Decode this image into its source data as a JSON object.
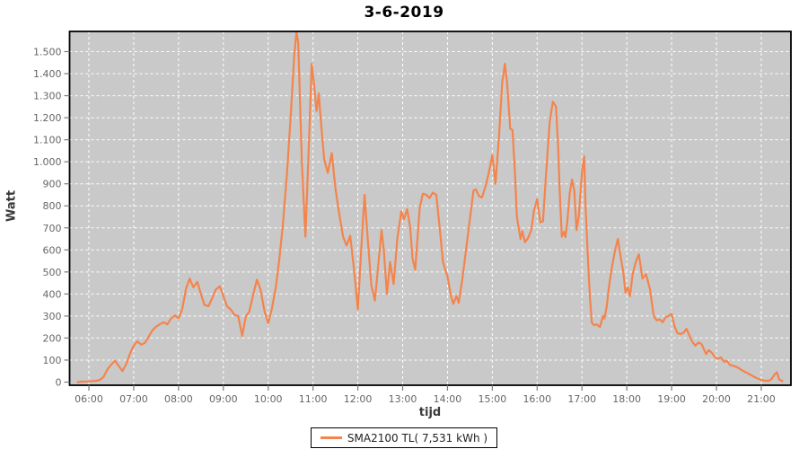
{
  "title": "3-6-2019",
  "legend": {
    "label": "SMA2100 TL( 7,531 kWh )"
  },
  "colors": {
    "series": "#f4844c",
    "plot_background": "#c9c9c9",
    "gridline": "#ffffff",
    "plot_border": "#000000",
    "tick_mark": "#7a7a7a",
    "tick_label": "#666666",
    "axis_title": "#3a3a3a",
    "title_color": "#000000",
    "page_background": "#ffffff"
  },
  "chart_data": {
    "type": "line",
    "title": "3-6-2019",
    "xlabel": "tijd",
    "ylabel": "Watt",
    "grid": "white dashed gridlines on gray plot background",
    "legend_position": "bottom-center",
    "ylim": [
      0,
      1592
    ],
    "xlim_hours": [
      5.55,
      21.65
    ],
    "y_ticks": [
      {
        "value": 0,
        "label": "0"
      },
      {
        "value": 100,
        "label": "100"
      },
      {
        "value": 200,
        "label": "200"
      },
      {
        "value": 300,
        "label": "300"
      },
      {
        "value": 400,
        "label": "400"
      },
      {
        "value": 500,
        "label": "500"
      },
      {
        "value": 600,
        "label": "600"
      },
      {
        "value": 700,
        "label": "700"
      },
      {
        "value": 800,
        "label": "800"
      },
      {
        "value": 900,
        "label": "900"
      },
      {
        "value": 1000,
        "label": "1.000"
      },
      {
        "value": 1100,
        "label": "1.100"
      },
      {
        "value": 1200,
        "label": "1.200"
      },
      {
        "value": 1300,
        "label": "1.300"
      },
      {
        "value": 1400,
        "label": "1.400"
      },
      {
        "value": 1500,
        "label": "1.500"
      }
    ],
    "x_ticks": [
      {
        "hour": 6,
        "label": "06:00"
      },
      {
        "hour": 7,
        "label": "07:00"
      },
      {
        "hour": 8,
        "label": "08:00"
      },
      {
        "hour": 9,
        "label": "09:00"
      },
      {
        "hour": 10,
        "label": "10:00"
      },
      {
        "hour": 11,
        "label": "11:00"
      },
      {
        "hour": 12,
        "label": "12:00"
      },
      {
        "hour": 13,
        "label": "13:00"
      },
      {
        "hour": 14,
        "label": "14:00"
      },
      {
        "hour": 15,
        "label": "15:00"
      },
      {
        "hour": 16,
        "label": "16:00"
      },
      {
        "hour": 17,
        "label": "17:00"
      },
      {
        "hour": 18,
        "label": "18:00"
      },
      {
        "hour": 19,
        "label": "19:00"
      },
      {
        "hour": 20,
        "label": "20:00"
      },
      {
        "hour": 21,
        "label": "21:00"
      }
    ],
    "series": [
      {
        "name": "SMA2100 TL( 7,531 kWh )",
        "color": "#f4844c",
        "points": [
          [
            5.75,
            0
          ],
          [
            5.83,
            2
          ],
          [
            5.92,
            3
          ],
          [
            6.0,
            3
          ],
          [
            6.08,
            5
          ],
          [
            6.17,
            6
          ],
          [
            6.25,
            10
          ],
          [
            6.33,
            25
          ],
          [
            6.42,
            60
          ],
          [
            6.5,
            80
          ],
          [
            6.58,
            97
          ],
          [
            6.67,
            72
          ],
          [
            6.75,
            50
          ],
          [
            6.83,
            80
          ],
          [
            6.92,
            130
          ],
          [
            7.0,
            165
          ],
          [
            7.08,
            185
          ],
          [
            7.17,
            170
          ],
          [
            7.25,
            178
          ],
          [
            7.33,
            205
          ],
          [
            7.42,
            235
          ],
          [
            7.5,
            252
          ],
          [
            7.58,
            262
          ],
          [
            7.67,
            272
          ],
          [
            7.75,
            262
          ],
          [
            7.83,
            288
          ],
          [
            7.92,
            303
          ],
          [
            8.0,
            290
          ],
          [
            8.08,
            330
          ],
          [
            8.17,
            425
          ],
          [
            8.25,
            470
          ],
          [
            8.33,
            430
          ],
          [
            8.42,
            455
          ],
          [
            8.5,
            400
          ],
          [
            8.58,
            350
          ],
          [
            8.67,
            345
          ],
          [
            8.75,
            380
          ],
          [
            8.83,
            420
          ],
          [
            8.92,
            435
          ],
          [
            9.0,
            390
          ],
          [
            9.08,
            345
          ],
          [
            9.17,
            328
          ],
          [
            9.25,
            305
          ],
          [
            9.33,
            300
          ],
          [
            9.42,
            210
          ],
          [
            9.5,
            298
          ],
          [
            9.58,
            320
          ],
          [
            9.67,
            400
          ],
          [
            9.75,
            465
          ],
          [
            9.83,
            420
          ],
          [
            9.92,
            320
          ],
          [
            10.0,
            268
          ],
          [
            10.08,
            330
          ],
          [
            10.17,
            430
          ],
          [
            10.25,
            560
          ],
          [
            10.33,
            720
          ],
          [
            10.42,
            950
          ],
          [
            10.5,
            1200
          ],
          [
            10.58,
            1480
          ],
          [
            10.63,
            1590
          ],
          [
            10.67,
            1540
          ],
          [
            10.75,
            1000
          ],
          [
            10.83,
            660
          ],
          [
            10.92,
            1150
          ],
          [
            10.97,
            1445
          ],
          [
            11.03,
            1340
          ],
          [
            11.08,
            1230
          ],
          [
            11.13,
            1310
          ],
          [
            11.17,
            1200
          ],
          [
            11.25,
            1010
          ],
          [
            11.33,
            950
          ],
          [
            11.42,
            1040
          ],
          [
            11.5,
            880
          ],
          [
            11.58,
            770
          ],
          [
            11.67,
            660
          ],
          [
            11.75,
            620
          ],
          [
            11.83,
            665
          ],
          [
            11.92,
            500
          ],
          [
            12.0,
            330
          ],
          [
            12.08,
            620
          ],
          [
            12.15,
            850
          ],
          [
            12.22,
            650
          ],
          [
            12.3,
            440
          ],
          [
            12.38,
            370
          ],
          [
            12.47,
            560
          ],
          [
            12.53,
            690
          ],
          [
            12.58,
            600
          ],
          [
            12.65,
            400
          ],
          [
            12.72,
            545
          ],
          [
            12.8,
            445
          ],
          [
            12.88,
            650
          ],
          [
            12.97,
            775
          ],
          [
            13.03,
            740
          ],
          [
            13.1,
            785
          ],
          [
            13.17,
            700
          ],
          [
            13.22,
            560
          ],
          [
            13.28,
            510
          ],
          [
            13.38,
            790
          ],
          [
            13.45,
            855
          ],
          [
            13.53,
            850
          ],
          [
            13.6,
            835
          ],
          [
            13.67,
            860
          ],
          [
            13.75,
            850
          ],
          [
            13.83,
            690
          ],
          [
            13.9,
            545
          ],
          [
            14.0,
            480
          ],
          [
            14.08,
            390
          ],
          [
            14.13,
            355
          ],
          [
            14.2,
            390
          ],
          [
            14.25,
            360
          ],
          [
            14.33,
            465
          ],
          [
            14.42,
            610
          ],
          [
            14.5,
            740
          ],
          [
            14.58,
            870
          ],
          [
            14.63,
            875
          ],
          [
            14.7,
            845
          ],
          [
            14.77,
            838
          ],
          [
            14.85,
            890
          ],
          [
            14.92,
            950
          ],
          [
            15.0,
            1030
          ],
          [
            15.07,
            900
          ],
          [
            15.15,
            1120
          ],
          [
            15.22,
            1360
          ],
          [
            15.28,
            1445
          ],
          [
            15.33,
            1360
          ],
          [
            15.4,
            1150
          ],
          [
            15.45,
            1145
          ],
          [
            15.5,
            975
          ],
          [
            15.55,
            750
          ],
          [
            15.6,
            685
          ],
          [
            15.63,
            650
          ],
          [
            15.67,
            685
          ],
          [
            15.73,
            635
          ],
          [
            15.8,
            655
          ],
          [
            15.87,
            690
          ],
          [
            15.93,
            780
          ],
          [
            16.0,
            830
          ],
          [
            16.07,
            725
          ],
          [
            16.13,
            730
          ],
          [
            16.2,
            950
          ],
          [
            16.28,
            1180
          ],
          [
            16.35,
            1273
          ],
          [
            16.42,
            1250
          ],
          [
            16.47,
            1060
          ],
          [
            16.5,
            880
          ],
          [
            16.55,
            660
          ],
          [
            16.6,
            682
          ],
          [
            16.63,
            658
          ],
          [
            16.67,
            725
          ],
          [
            16.73,
            860
          ],
          [
            16.78,
            920
          ],
          [
            16.83,
            870
          ],
          [
            16.88,
            690
          ],
          [
            16.93,
            755
          ],
          [
            17.0,
            950
          ],
          [
            17.05,
            1025
          ],
          [
            17.08,
            800
          ],
          [
            17.12,
            620
          ],
          [
            17.15,
            490
          ],
          [
            17.18,
            380
          ],
          [
            17.22,
            270
          ],
          [
            17.27,
            258
          ],
          [
            17.33,
            262
          ],
          [
            17.4,
            250
          ],
          [
            17.47,
            300
          ],
          [
            17.5,
            288
          ],
          [
            17.55,
            340
          ],
          [
            17.6,
            430
          ],
          [
            17.67,
            525
          ],
          [
            17.73,
            590
          ],
          [
            17.8,
            650
          ],
          [
            17.87,
            560
          ],
          [
            17.92,
            500
          ],
          [
            17.97,
            405
          ],
          [
            18.02,
            430
          ],
          [
            18.07,
            390
          ],
          [
            18.13,
            490
          ],
          [
            18.2,
            545
          ],
          [
            18.27,
            580
          ],
          [
            18.35,
            470
          ],
          [
            18.43,
            490
          ],
          [
            18.52,
            420
          ],
          [
            18.6,
            300
          ],
          [
            18.67,
            280
          ],
          [
            18.73,
            285
          ],
          [
            18.8,
            272
          ],
          [
            18.87,
            295
          ],
          [
            18.93,
            300
          ],
          [
            19.0,
            310
          ],
          [
            19.07,
            250
          ],
          [
            19.13,
            222
          ],
          [
            19.2,
            218
          ],
          [
            19.27,
            225
          ],
          [
            19.33,
            242
          ],
          [
            19.42,
            200
          ],
          [
            19.47,
            180
          ],
          [
            19.53,
            165
          ],
          [
            19.6,
            180
          ],
          [
            19.67,
            172
          ],
          [
            19.73,
            145
          ],
          [
            19.77,
            127
          ],
          [
            19.83,
            145
          ],
          [
            19.9,
            133
          ],
          [
            19.97,
            113
          ],
          [
            20.03,
            105
          ],
          [
            20.1,
            112
          ],
          [
            20.17,
            92
          ],
          [
            20.23,
            97
          ],
          [
            20.3,
            78
          ],
          [
            20.37,
            74
          ],
          [
            20.43,
            70
          ],
          [
            20.5,
            63
          ],
          [
            20.57,
            54
          ],
          [
            20.63,
            47
          ],
          [
            20.7,
            40
          ],
          [
            20.77,
            32
          ],
          [
            20.83,
            25
          ],
          [
            20.9,
            18
          ],
          [
            20.97,
            12
          ],
          [
            21.03,
            8
          ],
          [
            21.1,
            6
          ],
          [
            21.17,
            6
          ],
          [
            21.23,
            14
          ],
          [
            21.3,
            35
          ],
          [
            21.35,
            45
          ],
          [
            21.4,
            12
          ],
          [
            21.47,
            5
          ]
        ]
      }
    ]
  }
}
